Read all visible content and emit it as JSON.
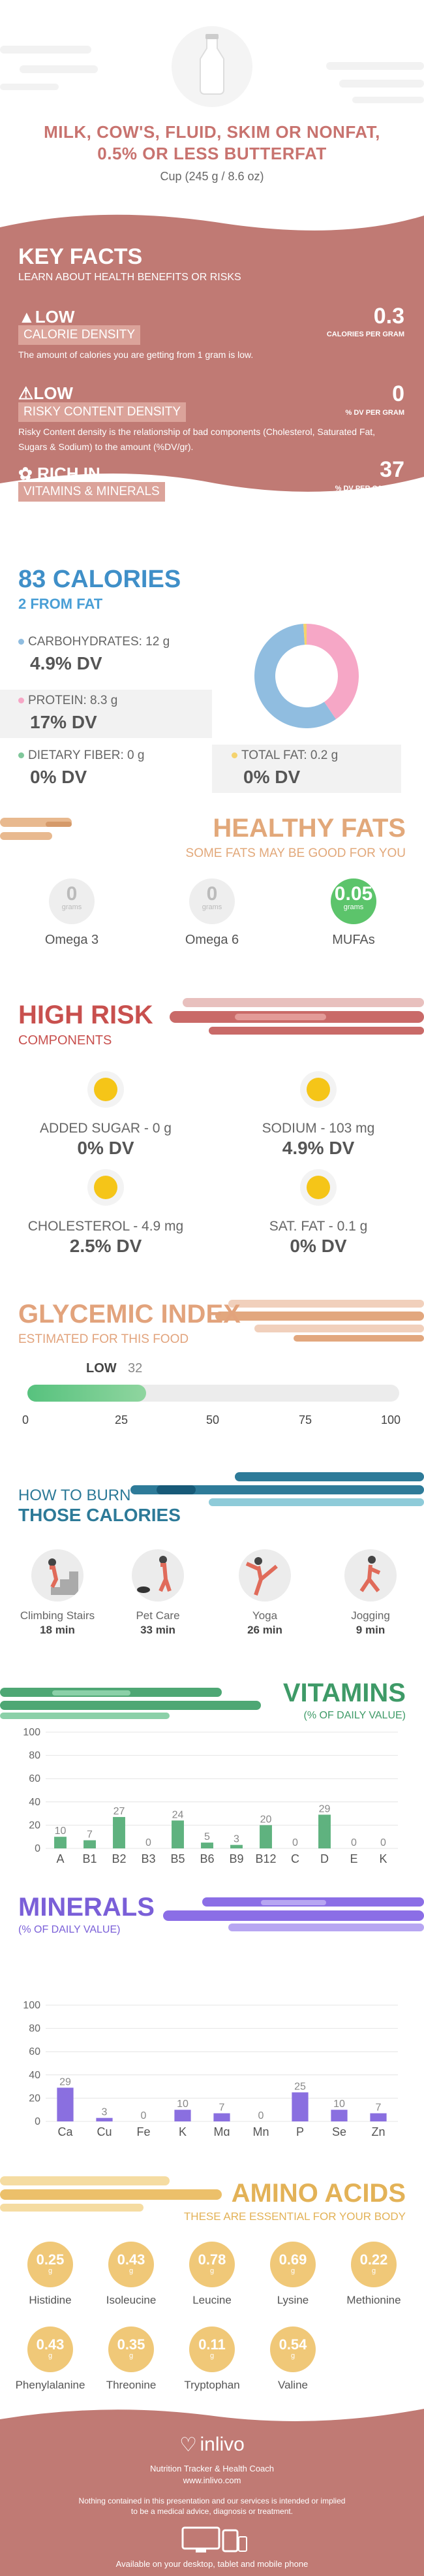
{
  "header": {
    "title": "MILK, COW'S, FLUID, SKIM OR NONFAT, 0.5% OR LESS BUTTERFAT",
    "serving": "Cup (245 g / 8.6 oz)"
  },
  "key_facts": {
    "title": "KEY FACTS",
    "subtitle": "LEARN ABOUT HEALTH BENEFITS OR RISKS",
    "calorie_density": {
      "level": "LOW",
      "label": "CALORIE DENSITY",
      "value": "0.3",
      "unit": "CALORIES PER GRAM",
      "desc": "The amount of calories you are getting from 1 gram is low."
    },
    "risky_density": {
      "level": "LOW",
      "label": "RISKY CONTENT DENSITY",
      "value": "0",
      "unit": "% DV PER GRAM",
      "desc": "Risky Content density is the relationship of bad components (Cholesterol, Saturated Fat, Sugars & Sodium) to the amount (%DV/gr)."
    },
    "vitamins": {
      "level": "RICH IN",
      "label": "VITAMINS & MINERALS",
      "value": "37",
      "unit": "% DV PER CALORIE"
    }
  },
  "calories": {
    "title": "83 CALORIES",
    "subtitle": "2 FROM FAT",
    "carbs_label": "CARBOHYDRATES: 12 g",
    "carbs_dv": "4.9% DV",
    "protein_label": "PROTEIN: 8.3 g",
    "protein_dv": "17% DV",
    "fiber_label": "DIETARY FIBER: 0 g",
    "fiber_dv": "0% DV",
    "fat_label": "TOTAL FAT: 0.2 g",
    "fat_dv": "0% DV",
    "donut": {
      "carbs": 12,
      "protein": 8.3,
      "fat": 0.2
    },
    "colors": {
      "carbs": "#90bde0",
      "protein": "#f6a7c6",
      "fiber": "#7fc79a",
      "fat": "#f5d36e"
    }
  },
  "healthy_fats": {
    "title": "HEALTHY FATS",
    "subtitle": "SOME FATS MAY BE GOOD FOR YOU",
    "items": [
      {
        "name": "Omega 3",
        "value": "0",
        "unit": "grams"
      },
      {
        "name": "Omega 6",
        "value": "0",
        "unit": "grams"
      },
      {
        "name": "MUFAs",
        "value": "0.05",
        "unit": "grams"
      }
    ]
  },
  "high_risk": {
    "title": "HIGH RISK",
    "subtitle": "COMPONENTS",
    "items": [
      {
        "label": "ADDED SUGAR - 0 g",
        "dv": "0% DV"
      },
      {
        "label": "SODIUM - 103 mg",
        "dv": "4.9% DV"
      },
      {
        "label": "CHOLESTEROL - 4.9 mg",
        "dv": "2.5% DV"
      },
      {
        "label": "SAT. FAT - 0.1 g",
        "dv": "0% DV"
      }
    ]
  },
  "glycemic": {
    "title": "GLYCEMIC INDEX",
    "subtitle": "ESTIMATED FOR THIS FOOD",
    "level": "LOW",
    "value": "32",
    "fill": 0.32,
    "ticks": [
      "0",
      "25",
      "50",
      "75",
      "100"
    ]
  },
  "burn": {
    "title1": "HOW TO BURN",
    "title2": "THOSE CALORIES",
    "items": [
      {
        "name": "Climbing Stairs",
        "min": "18 min"
      },
      {
        "name": "Pet Care",
        "min": "33 min"
      },
      {
        "name": "Yoga",
        "min": "26 min"
      },
      {
        "name": "Jogging",
        "min": "9 min"
      }
    ]
  },
  "vitamins": {
    "title": "VITAMINS",
    "subtitle": "(% OF DAILY VALUE)"
  },
  "minerals": {
    "title": "MINERALS",
    "subtitle": "(% OF DAILY VALUE)"
  },
  "chart_data": [
    {
      "type": "bar",
      "title": "VITAMINS",
      "categories": [
        "A",
        "B1",
        "B2",
        "B3",
        "B5",
        "B6",
        "B9",
        "B12",
        "C",
        "D",
        "E",
        "K"
      ],
      "values": [
        10,
        7,
        27,
        0,
        24,
        5,
        3,
        20,
        0,
        29,
        0,
        0
      ],
      "yticks": [
        "0",
        "20",
        "40",
        "60",
        "80",
        "100"
      ],
      "ylim": [
        0,
        100
      ],
      "color": "#5fb27f"
    },
    {
      "type": "bar",
      "title": "MINERALS",
      "categories": [
        "Ca",
        "Cu",
        "Fe",
        "K",
        "Mg",
        "Mn",
        "P",
        "Se",
        "Zn"
      ],
      "values": [
        29,
        3,
        0,
        10,
        7,
        0,
        25,
        10,
        7
      ],
      "yticks": [
        "0",
        "20",
        "40",
        "60",
        "80",
        "100"
      ],
      "ylim": [
        0,
        100
      ],
      "color": "#8a6fe0"
    }
  ],
  "amino": {
    "title": "AMINO ACIDS",
    "subtitle": "THESE ARE ESSENTIAL FOR YOUR BODY",
    "unit": "g",
    "items": [
      {
        "name": "Histidine",
        "value": "0.25"
      },
      {
        "name": "Isoleucine",
        "value": "0.43"
      },
      {
        "name": "Leucine",
        "value": "0.78"
      },
      {
        "name": "Lysine",
        "value": "0.69"
      },
      {
        "name": "Methionine",
        "value": "0.22"
      },
      {
        "name": "Phenylalanine",
        "value": "0.43"
      },
      {
        "name": "Threonine",
        "value": "0.35"
      },
      {
        "name": "Tryptophan",
        "value": "0.11"
      },
      {
        "name": "Valine",
        "value": "0.54"
      }
    ]
  },
  "footer": {
    "brand": "inlivo",
    "tagline": "Nutrition Tracker & Health Coach",
    "url": "www.inlivo.com",
    "disclaimer1": "Nothing contained in this presentation and our services is intended or implied",
    "disclaimer2": "to be a medical advice, diagnosis or treatment.",
    "available": "Available on your desktop, tablet and mobile phone"
  }
}
